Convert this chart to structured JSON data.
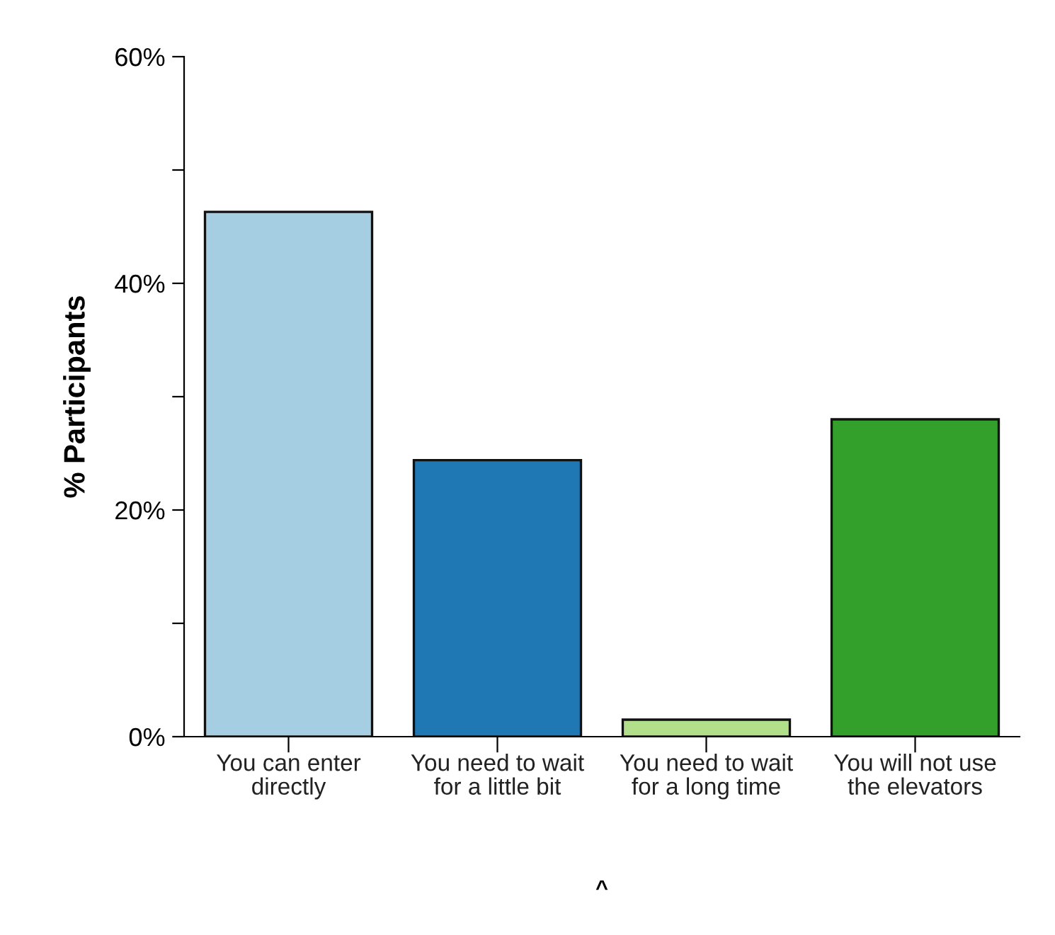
{
  "chart_data": {
    "type": "bar",
    "ylabel": "% Participants",
    "categories": [
      "You can enter directly",
      "You need to wait for a little bit",
      "You need to wait for a long time",
      "You will not use the elevators"
    ],
    "values": [
      46.3,
      24.4,
      1.5,
      28.0
    ],
    "colors": [
      "#a6cee3",
      "#1f78b4",
      "#b2df8a",
      "#33a02c"
    ],
    "ylim": [
      0,
      60
    ],
    "yticks": [
      {
        "value": 0,
        "label": "0%"
      },
      {
        "value": 10,
        "label": null
      },
      {
        "value": 20,
        "label": "20%"
      },
      {
        "value": 30,
        "label": null
      },
      {
        "value": 40,
        "label": "40%"
      },
      {
        "value": 50,
        "label": null
      },
      {
        "value": 60,
        "label": "60%"
      }
    ],
    "annotations": [
      "^"
    ],
    "grid": false,
    "legend": false
  }
}
